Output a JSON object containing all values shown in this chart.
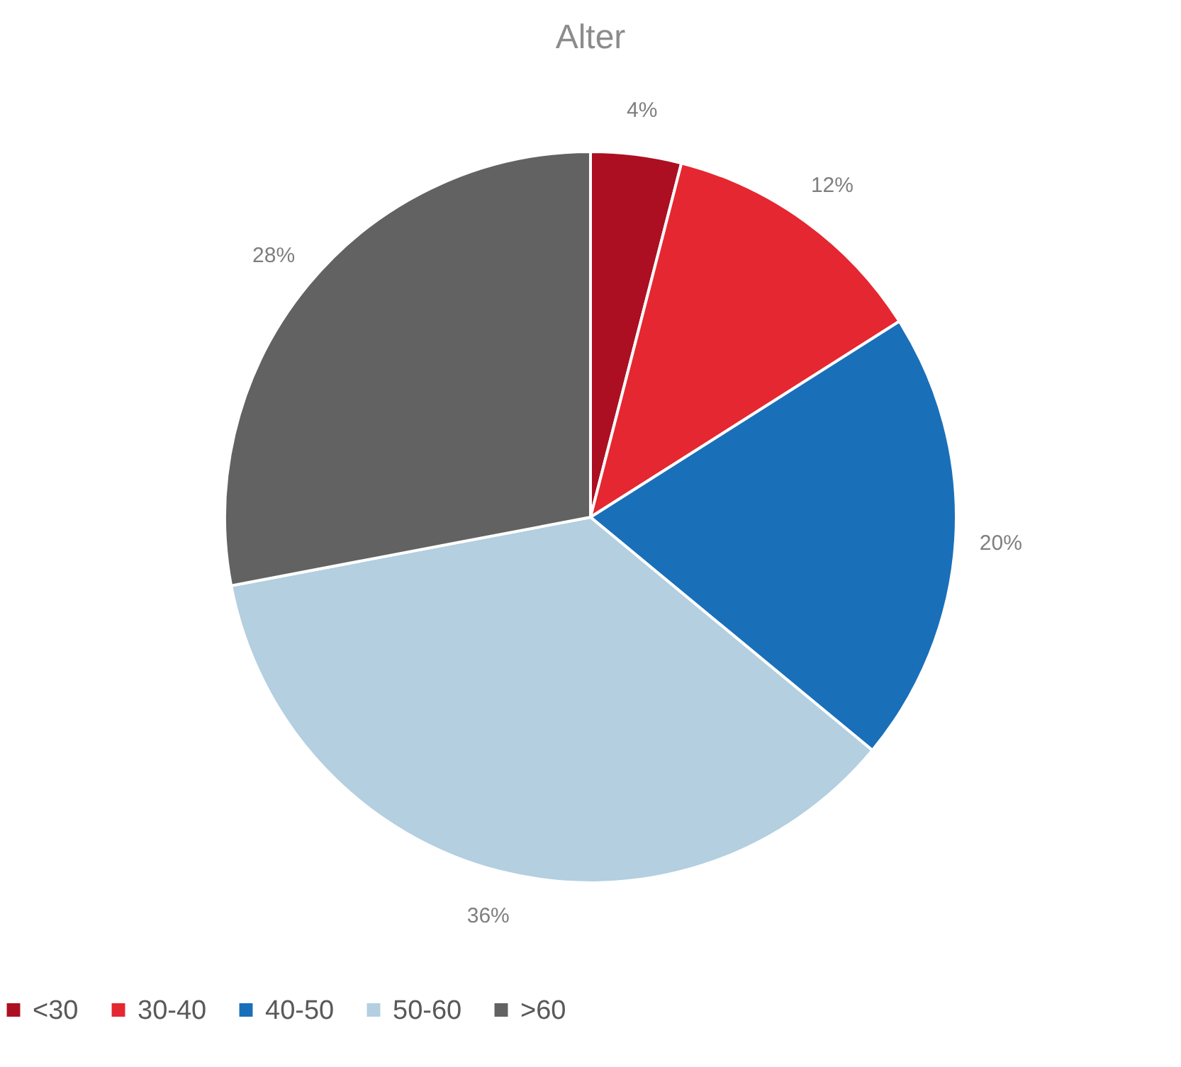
{
  "chart_data": {
    "type": "pie",
    "title": "Alter",
    "categories": [
      "<30",
      "30-40",
      "40-50",
      "50-60",
      ">60"
    ],
    "values": [
      4,
      12,
      20,
      36,
      28
    ],
    "colors": [
      "#ad0f22",
      "#e52731",
      "#1a6fb9",
      "#b3cfe0",
      "#626262"
    ],
    "value_labels": [
      "4%",
      "12%",
      "20%",
      "36%",
      "28%"
    ],
    "legend": "bottom"
  }
}
